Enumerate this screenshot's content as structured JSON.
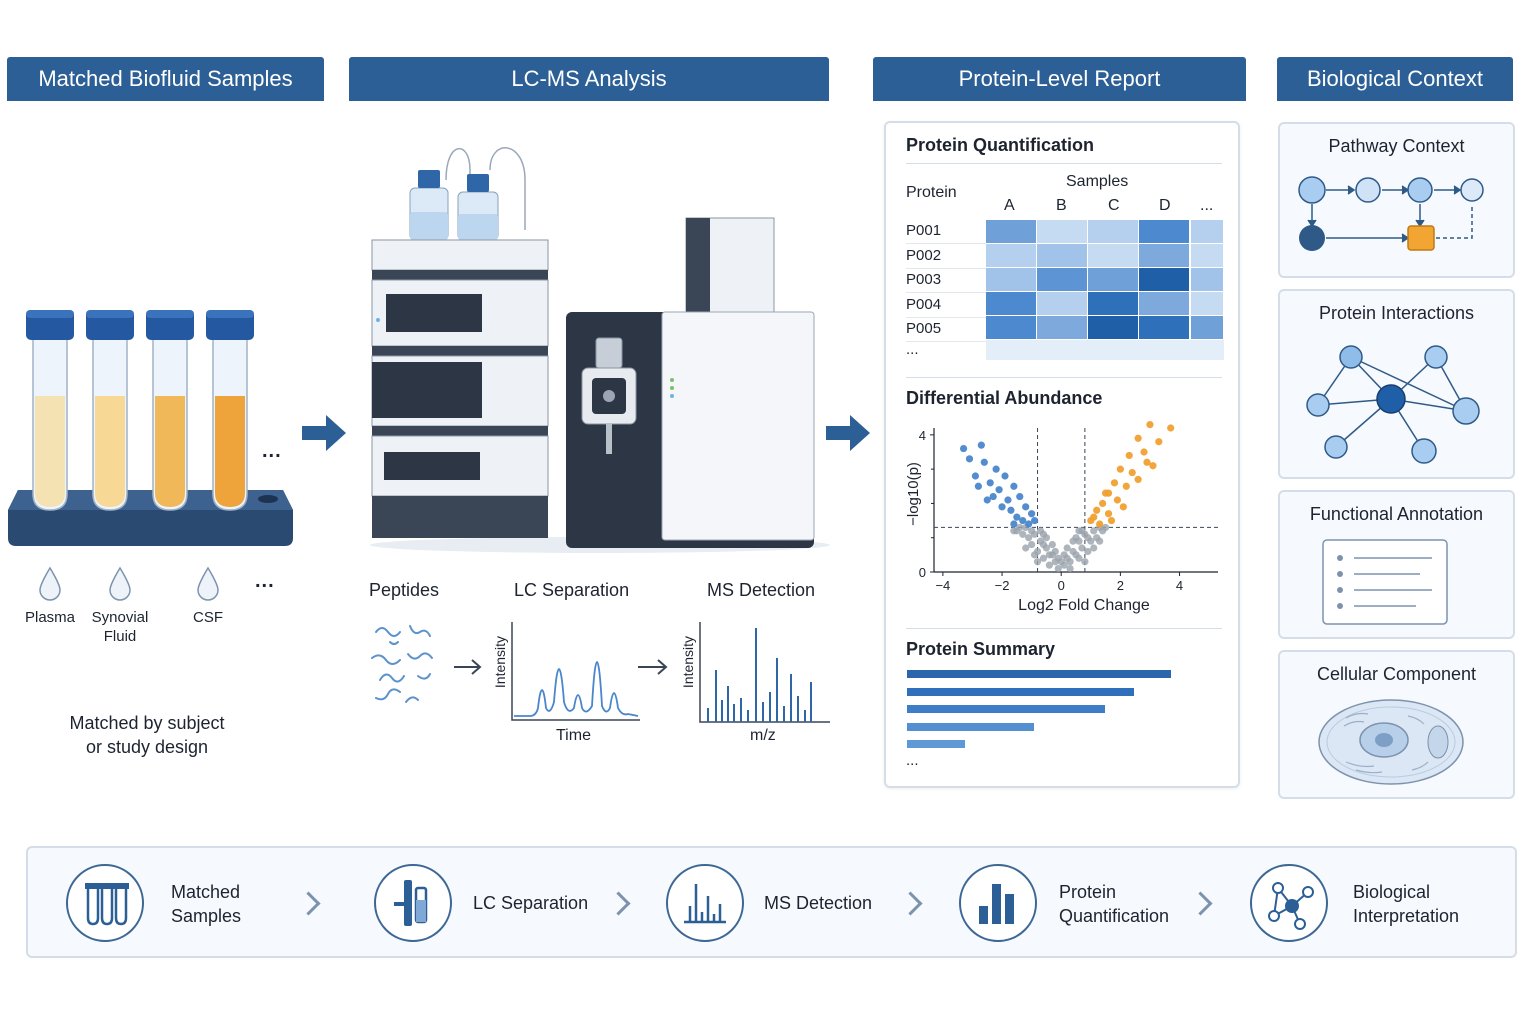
{
  "headers": {
    "samples": "Matched Biofluid Samples",
    "lcms": "LC-MS Analysis",
    "report": "Protein-Level Report",
    "context": "Biological Context"
  },
  "samples": {
    "fluids": [
      "Plasma",
      "Synovial\nFluid",
      "CSF"
    ],
    "ellipsis": "...",
    "note": "Matched by subject\nor study design",
    "tube_colors": [
      "#f4e2b3",
      "#f7d894",
      "#f1b85a",
      "#eea43a"
    ]
  },
  "lcms": {
    "peptides_label": "Peptides",
    "lc_label": "LC Separation",
    "ms_label": "MS Detection",
    "lc_y_axis": "Intensity",
    "lc_x_axis": "Time",
    "ms_y_axis": "Intensity",
    "ms_x_axis": "m/z"
  },
  "report": {
    "quant_title": "Protein Quantification",
    "protein_col": "Protein",
    "samples_col": "Samples",
    "sample_ids": [
      "A",
      "B",
      "C",
      "D",
      "..."
    ],
    "proteins": [
      "P001",
      "P002",
      "P003",
      "P004",
      "P005",
      "..."
    ],
    "heatmap_colors": [
      [
        "#6fa0d8",
        "#c5dbf2",
        "#b5d0ee",
        "#4d89cf",
        "#b5d0ee"
      ],
      [
        "#b5d0ee",
        "#a1c3ea",
        "#c5dbf2",
        "#7ea9dc",
        "#c5dbf2"
      ],
      [
        "#a1c3ea",
        "#5d95d4",
        "#6fa0d8",
        "#1f5fa8",
        "#a1c3ea"
      ],
      [
        "#4d89cf",
        "#b5d0ee",
        "#2f70bb",
        "#7ea9dc",
        "#c5dbf2"
      ],
      [
        "#4d89cf",
        "#7ea9dc",
        "#1f5fa8",
        "#2f70bb",
        "#6fa0d8"
      ]
    ],
    "diff_title": "Differential Abundance",
    "summary_title": "Protein Summary",
    "summary_values": [
      1.0,
      0.86,
      0.75,
      0.48,
      0.22
    ],
    "summary_ellipsis": "..."
  },
  "chart_data": {
    "type": "scatter",
    "xlabel": "Log2 Fold Change",
    "ylabel": "−log10(p)",
    "xlim": [
      -4.3,
      5.3
    ],
    "ylim": [
      0,
      4.2
    ],
    "xticks": [
      -4,
      -2,
      0,
      2,
      4
    ],
    "yticks": [
      0,
      4
    ],
    "thresholds": {
      "x": [
        -0.8,
        0.8
      ],
      "y": 1.3
    },
    "series": [
      {
        "color": "#4a86cc",
        "points": [
          [
            -3.3,
            3.6
          ],
          [
            -2.7,
            3.7
          ],
          [
            -3.1,
            3.3
          ],
          [
            -2.6,
            3.2
          ],
          [
            -2.9,
            2.8
          ],
          [
            -2.2,
            3.0
          ],
          [
            -2.4,
            2.6
          ],
          [
            -1.9,
            2.8
          ],
          [
            -2.1,
            2.4
          ],
          [
            -1.6,
            2.5
          ],
          [
            -1.8,
            2.1
          ],
          [
            -1.4,
            2.2
          ],
          [
            -2.5,
            2.1
          ],
          [
            -1.2,
            1.9
          ],
          [
            -1.5,
            1.6
          ],
          [
            -1.0,
            1.7
          ],
          [
            -2.0,
            1.9
          ],
          [
            -1.3,
            1.5
          ],
          [
            -1.7,
            1.8
          ],
          [
            -0.9,
            1.5
          ],
          [
            -1.1,
            1.4
          ],
          [
            -2.3,
            2.2
          ],
          [
            -1.6,
            1.4
          ],
          [
            -2.8,
            2.5
          ]
        ]
      },
      {
        "color": "#f0a030",
        "points": [
          [
            3.0,
            4.3
          ],
          [
            3.7,
            4.2
          ],
          [
            2.6,
            3.9
          ],
          [
            3.3,
            3.8
          ],
          [
            2.3,
            3.4
          ],
          [
            2.8,
            3.5
          ],
          [
            3.1,
            3.1
          ],
          [
            2.0,
            3.0
          ],
          [
            2.4,
            2.9
          ],
          [
            1.8,
            2.6
          ],
          [
            2.2,
            2.5
          ],
          [
            1.6,
            2.3
          ],
          [
            2.6,
            2.7
          ],
          [
            1.4,
            2.0
          ],
          [
            1.9,
            2.1
          ],
          [
            1.2,
            1.8
          ],
          [
            1.6,
            1.7
          ],
          [
            1.0,
            1.5
          ],
          [
            2.1,
            1.9
          ],
          [
            1.3,
            1.4
          ],
          [
            1.5,
            2.3
          ],
          [
            2.9,
            3.2
          ],
          [
            1.1,
            1.6
          ],
          [
            1.7,
            1.5
          ]
        ]
      },
      {
        "color": "#9aa2ad",
        "points": [
          [
            -1.2,
            1.3
          ],
          [
            -0.9,
            1.1
          ],
          [
            -1.5,
            1.2
          ],
          [
            -0.7,
            0.9
          ],
          [
            -1.0,
            0.8
          ],
          [
            -0.5,
            0.7
          ],
          [
            -0.8,
            0.6
          ],
          [
            -0.3,
            0.5
          ],
          [
            -0.6,
            0.4
          ],
          [
            -0.2,
            0.3
          ],
          [
            -0.4,
            0.2
          ],
          [
            0.1,
            0.2
          ],
          [
            0.3,
            0.3
          ],
          [
            0.5,
            0.5
          ],
          [
            0.2,
            0.4
          ],
          [
            0.7,
            0.7
          ],
          [
            0.4,
            0.6
          ],
          [
            0.9,
            1.0
          ],
          [
            0.6,
            0.9
          ],
          [
            1.1,
            1.2
          ],
          [
            0.8,
            1.1
          ],
          [
            1.3,
            1.3
          ],
          [
            -0.1,
            0.1
          ],
          [
            0.0,
            0.3
          ],
          [
            -1.1,
            1.0
          ],
          [
            -1.3,
            1.1
          ],
          [
            -0.6,
            0.8
          ],
          [
            0.6,
            0.4
          ],
          [
            1.0,
            0.9
          ],
          [
            1.4,
            1.2
          ],
          [
            -0.9,
            0.5
          ],
          [
            0.3,
            0.1
          ],
          [
            -0.3,
            0.8
          ],
          [
            0.2,
            0.7
          ],
          [
            -0.7,
            1.2
          ],
          [
            0.9,
            0.6
          ],
          [
            1.2,
            1.0
          ],
          [
            -1.4,
            1.3
          ],
          [
            -0.2,
            0.6
          ],
          [
            0.5,
            1.0
          ],
          [
            -0.5,
            1.0
          ],
          [
            0.7,
            1.2
          ],
          [
            1.5,
            1.3
          ],
          [
            -1.6,
            1.2
          ],
          [
            -0.8,
            0.3
          ],
          [
            0.8,
            0.3
          ],
          [
            -0.4,
            0.5
          ],
          [
            0.4,
            0.9
          ],
          [
            -1.0,
            1.2
          ],
          [
            1.1,
            0.7
          ],
          [
            -1.2,
            0.7
          ],
          [
            0.1,
            0.5
          ],
          [
            -0.1,
            0.4
          ],
          [
            0.6,
            1.2
          ],
          [
            -0.6,
            1.1
          ],
          [
            1.3,
            0.9
          ]
        ]
      }
    ]
  },
  "context": {
    "pathway_title": "Pathway Context",
    "interactions_title": "Protein Interactions",
    "annotation_title": "Functional Annotation",
    "component_title": "Cellular Component"
  },
  "workflow": {
    "steps": [
      "Matched\nSamples",
      "LC Separation",
      "MS Detection",
      "Protein\nQuantification",
      "Biological\nInterpretation"
    ]
  }
}
